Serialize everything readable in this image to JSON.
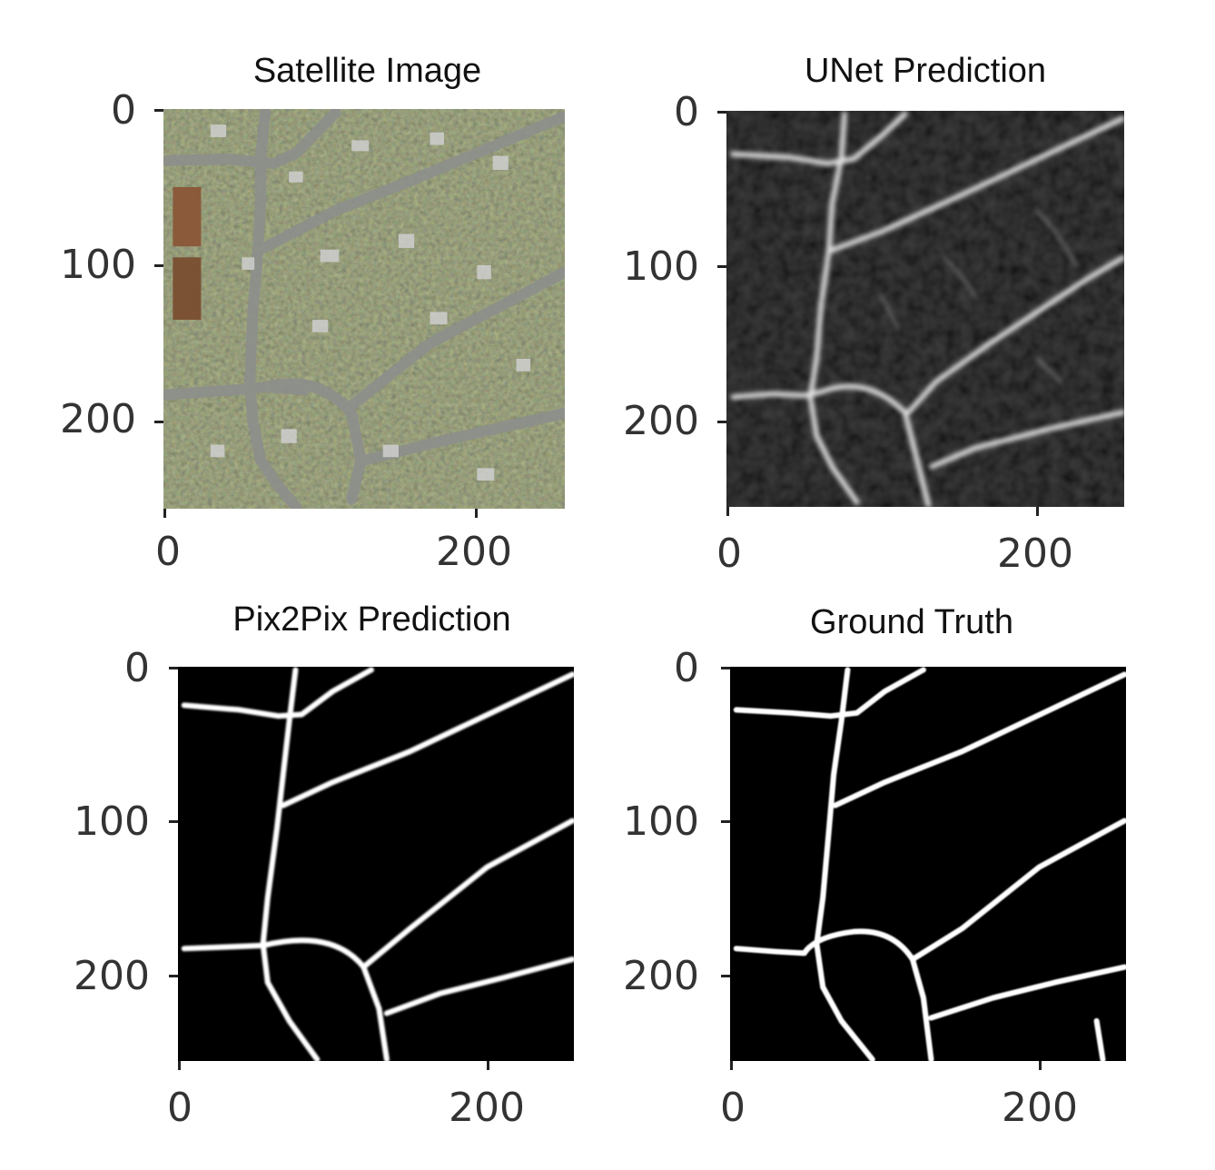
{
  "panels": [
    {
      "key": "satellite",
      "title": "Satellite Image",
      "y_ticks": [
        "0",
        "100",
        "200"
      ],
      "x_ticks": [
        "0",
        "200"
      ]
    },
    {
      "key": "unet",
      "title": "UNet Prediction",
      "y_ticks": [
        "0",
        "100",
        "200"
      ],
      "x_ticks": [
        "0",
        "200"
      ]
    },
    {
      "key": "pix2pix",
      "title": "Pix2Pix Prediction",
      "y_ticks": [
        "0",
        "100",
        "200"
      ],
      "x_ticks": [
        "0",
        "200"
      ]
    },
    {
      "key": "ground_truth",
      "title": "Ground Truth",
      "y_ticks": [
        "0",
        "100",
        "200"
      ],
      "x_ticks": [
        "0",
        "200"
      ]
    }
  ],
  "colors": {
    "road": "#ffffff",
    "mask_background": "#000000",
    "satellite_base": "#3b3d2c"
  }
}
